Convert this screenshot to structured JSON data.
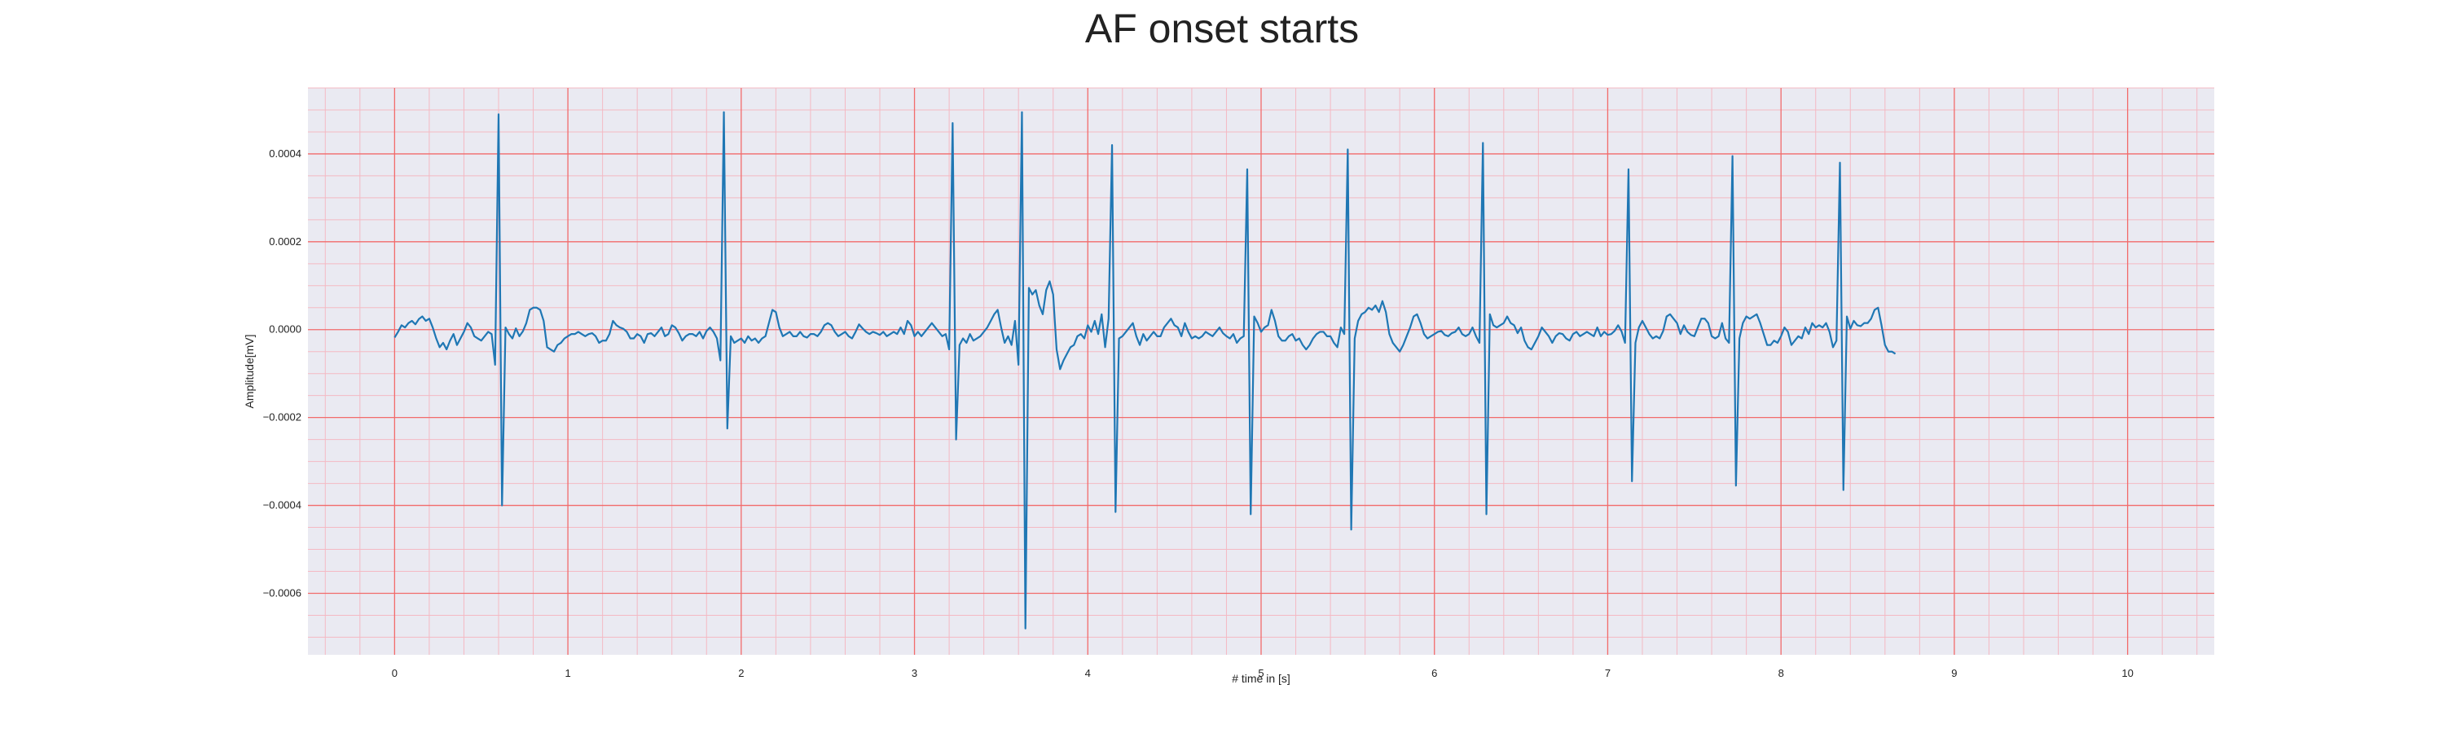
{
  "chart_data": {
    "type": "line",
    "title": "AF onset starts",
    "xlabel": "# time in [s]",
    "ylabel": "Amplitude[mV]",
    "xlim": [
      -0.5,
      10.5
    ],
    "ylim": [
      -0.00074,
      0.00055
    ],
    "x_ticks": [
      0,
      1,
      2,
      3,
      4,
      5,
      6,
      7,
      8,
      9,
      10
    ],
    "x_tick_labels": [
      "0",
      "1",
      "2",
      "3",
      "4",
      "5",
      "6",
      "7",
      "8",
      "9",
      "10"
    ],
    "y_ticks": [
      0.0004,
      0.0002,
      0.0,
      -0.0002,
      -0.0004,
      -0.0006
    ],
    "y_tick_labels": [
      "0.0004",
      "0.0002",
      "0.0000",
      "−0.0002",
      "−0.0004",
      "−0.0006"
    ],
    "grid": true,
    "background_color": "#eaeaf2",
    "major_grid_color": "#f26b6b",
    "minor_grid_color": "#f4b9c3",
    "series": [
      {
        "color": "#1f77b4",
        "x_start": 0,
        "x_step": 0.02,
        "values": [
          -1.8e-05,
          -5e-06,
          1e-05,
          5e-06,
          1.5e-05,
          2e-05,
          1.2e-05,
          2.4e-05,
          3e-05,
          2e-05,
          2.5e-05,
          5e-06,
          -2e-05,
          -4e-05,
          -3e-05,
          -4.5e-05,
          -2.5e-05,
          -1e-05,
          -3.5e-05,
          -2e-05,
          -5e-06,
          1.5e-05,
          5e-06,
          -1.5e-05,
          -2e-05,
          -2.5e-05,
          -1.5e-05,
          -5e-06,
          -1e-05,
          -8e-05,
          0.00049,
          -0.0004,
          5e-06,
          -1e-05,
          -2e-05,
          3e-06,
          -1.5e-05,
          -4e-06,
          1.5e-05,
          4.5e-05,
          5e-05,
          5e-05,
          4.5e-05,
          2e-05,
          -4e-05,
          -4.5e-05,
          -5e-05,
          -3.5e-05,
          -3e-05,
          -2e-05,
          -1.5e-05,
          -1e-05,
          -1e-05,
          -5e-06,
          -1e-05,
          -1.5e-05,
          -1e-05,
          -8e-06,
          -1.5e-05,
          -3e-05,
          -2.5e-05,
          -2.5e-05,
          -1e-05,
          2e-05,
          1e-05,
          5e-06,
          2e-06,
          -5e-06,
          -2e-05,
          -2e-05,
          -1e-05,
          -1.5e-05,
          -3e-05,
          -1e-05,
          -8e-06,
          -1.5e-05,
          -5e-06,
          5e-06,
          -1.5e-05,
          -1e-05,
          1e-05,
          5e-06,
          -8e-06,
          -2.5e-05,
          -1.5e-05,
          -1e-05,
          -1e-05,
          -1.5e-05,
          -5e-06,
          -2e-05,
          -3e-06,
          5e-06,
          -5e-06,
          -2e-05,
          -7e-05,
          0.000495,
          -0.000225,
          -1.5e-05,
          -3e-05,
          -2.5e-05,
          -2e-05,
          -3e-05,
          -1.5e-05,
          -2.5e-05,
          -2e-05,
          -3e-05,
          -2e-05,
          -1.5e-05,
          1.5e-05,
          4.5e-05,
          4e-05,
          5e-06,
          -1.5e-05,
          -1e-05,
          -5e-06,
          -1.5e-05,
          -1.5e-05,
          -5e-06,
          -1.5e-05,
          -1.8e-05,
          -1e-05,
          -1e-05,
          -1.5e-05,
          -5e-06,
          1e-05,
          1.5e-05,
          1e-05,
          -5e-06,
          -1.5e-05,
          -1e-05,
          -5e-06,
          -1.5e-05,
          -2e-05,
          -5e-06,
          1.2e-05,
          3e-06,
          -5e-06,
          -1e-05,
          -5e-06,
          -8e-06,
          -1.2e-05,
          -5e-06,
          -1.5e-05,
          -1e-05,
          -5e-06,
          -1e-05,
          5e-06,
          -1e-05,
          2e-05,
          1e-05,
          -1.5e-05,
          -5e-06,
          -1.5e-05,
          -5e-06,
          5e-06,
          1.5e-05,
          5e-06,
          -5e-06,
          -1.5e-05,
          -1e-05,
          -4.5e-05,
          0.00047,
          -0.00025,
          -3.5e-05,
          -2e-05,
          -3e-05,
          -1e-05,
          -2.5e-05,
          -2e-05,
          -1.5e-05,
          -5e-06,
          5e-06,
          2e-05,
          3.5e-05,
          4.5e-05,
          5e-06,
          -3e-05,
          -1.5e-05,
          -3.5e-05,
          2e-05,
          -8e-05,
          0.000495,
          -0.00068,
          9.5e-05,
          8e-05,
          9e-05,
          5.5e-05,
          3.5e-05,
          9e-05,
          0.00011,
          8e-05,
          -4.5e-05,
          -9e-05,
          -7e-05,
          -5.5e-05,
          -4e-05,
          -3.5e-05,
          -1.5e-05,
          -1e-05,
          -2e-05,
          1e-05,
          -5e-06,
          2e-05,
          -1e-05,
          3.5e-05,
          -4e-05,
          2.5e-05,
          0.00042,
          -0.000415,
          -2e-05,
          -1.5e-05,
          -5e-06,
          5e-06,
          1.5e-05,
          -1.5e-05,
          -3.5e-05,
          -1e-05,
          -2.5e-05,
          -1.5e-05,
          -5e-06,
          -1.5e-05,
          -1.5e-05,
          5e-06,
          1.5e-05,
          2.5e-05,
          1e-05,
          5e-06,
          -1.5e-05,
          1.5e-05,
          -5e-06,
          -2e-05,
          -1.5e-05,
          -2e-05,
          -1.5e-05,
          -5e-06,
          -1e-05,
          -1.5e-05,
          -5e-06,
          5e-06,
          -8e-06,
          -1.5e-05,
          -2e-05,
          -1e-05,
          -3e-05,
          -2e-05,
          -1.5e-05,
          0.000365,
          -0.00042,
          3e-05,
          1.5e-05,
          -5e-06,
          5e-06,
          1e-05,
          4.5e-05,
          2e-05,
          -1.5e-05,
          -2.5e-05,
          -2.5e-05,
          -1.5e-05,
          -1e-05,
          -2.5e-05,
          -2e-05,
          -3.5e-05,
          -4.5e-05,
          -3.5e-05,
          -2e-05,
          -1e-05,
          -5e-06,
          -5e-06,
          -1.5e-05,
          -1.5e-05,
          -3e-05,
          -4e-05,
          5e-06,
          -1e-05,
          0.00041,
          -0.000455,
          -2e-05,
          2e-05,
          3.5e-05,
          4e-05,
          5e-05,
          4.5e-05,
          5.5e-05,
          4e-05,
          6.5e-05,
          4e-05,
          -1e-05,
          -3e-05,
          -4e-05,
          -5e-05,
          -3.5e-05,
          -1.5e-05,
          5e-06,
          3e-05,
          3.5e-05,
          1.5e-05,
          -1e-05,
          -2e-05,
          -1.5e-05,
          -1e-05,
          -5e-06,
          -3e-06,
          -1.2e-05,
          -1.5e-05,
          -8e-06,
          -5e-06,
          5e-06,
          -1e-05,
          -1.5e-05,
          -1e-05,
          5e-06,
          -1.5e-05,
          -3e-05,
          0.000425,
          -0.00042,
          3.5e-05,
          1e-05,
          5e-06,
          1e-05,
          1.5e-05,
          3e-05,
          1.5e-05,
          1e-05,
          -8e-06,
          5e-06,
          -2.5e-05,
          -4e-05,
          -4.5e-05,
          -3e-05,
          -1.5e-05,
          5e-06,
          -5e-06,
          -1.5e-05,
          -3e-05,
          -1.5e-05,
          -8e-06,
          -1e-05,
          -2e-05,
          -2.5e-05,
          -1e-05,
          -5e-06,
          -1.5e-05,
          -1e-05,
          -5e-06,
          -1e-05,
          -1.5e-05,
          5e-06,
          -1.5e-05,
          -5e-06,
          -1.2e-05,
          -1e-05,
          -3e-06,
          1e-05,
          -4e-06,
          -3e-05,
          0.000365,
          -0.000345,
          -3e-05,
          5e-06,
          2e-05,
          5e-06,
          -1e-05,
          -2e-05,
          -1.5e-05,
          -2e-05,
          -3e-06,
          3e-05,
          3.5e-05,
          2.5e-05,
          1.5e-05,
          -1e-05,
          1e-05,
          -5e-06,
          -1.2e-05,
          -1.5e-05,
          5e-06,
          2.5e-05,
          2.5e-05,
          1.5e-05,
          -1.5e-05,
          -2e-05,
          -1.5e-05,
          1.5e-05,
          -2e-05,
          -3e-05,
          0.000395,
          -0.000355,
          -2e-05,
          1.5e-05,
          3e-05,
          2.5e-05,
          3e-05,
          3.5e-05,
          1.5e-05,
          -1e-05,
          -3.5e-05,
          -3.5e-05,
          -2.5e-05,
          -3e-05,
          -1.5e-05,
          5e-06,
          -5e-06,
          -3.5e-05,
          -2.5e-05,
          -1.5e-05,
          -2e-05,
          5e-06,
          -1e-05,
          1.5e-05,
          5e-06,
          1e-05,
          5e-06,
          1.5e-05,
          -5e-06,
          -4e-05,
          -2.5e-05,
          0.00038,
          -0.000365,
          3e-05,
          2e-06,
          2e-05,
          1e-05,
          8e-06,
          1.5e-05,
          1.5e-05,
          2.5e-05,
          4.5e-05,
          5e-05,
          1e-05,
          -3.5e-05,
          -5e-05,
          -5e-05,
          -5.5e-05
        ]
      }
    ]
  }
}
